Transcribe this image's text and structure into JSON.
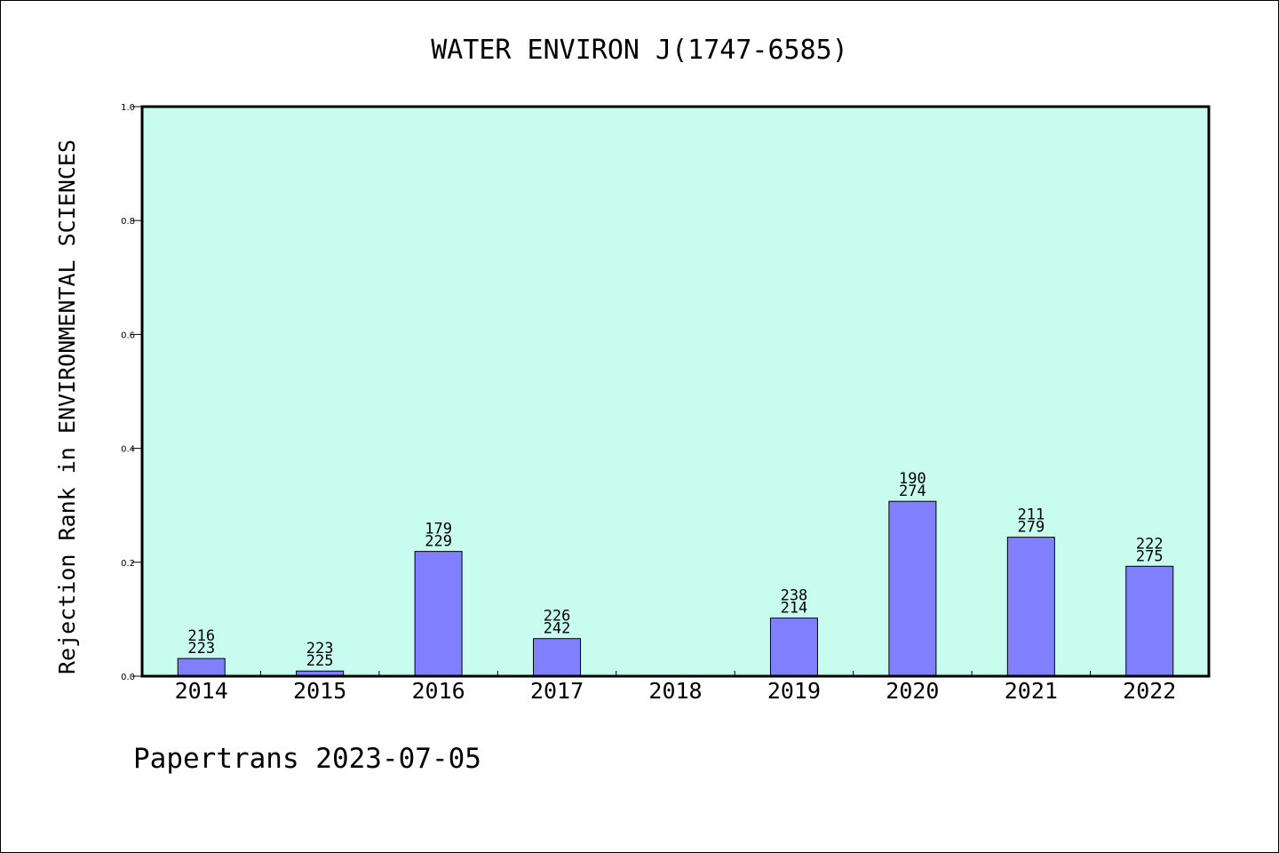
{
  "chart_data": {
    "type": "bar",
    "title": "WATER ENVIRON J(1747-6585)",
    "ylabel": "Rejection Rank in ENVIRONMENTAL SCIENCES",
    "xlabel": "",
    "footer": "Papertrans 2023-07-05",
    "ylim": [
      0.0,
      1.0
    ],
    "yticks": [
      "0.0",
      "0.2",
      "0.4",
      "0.6",
      "0.8",
      "1.0"
    ],
    "ytick_values": [
      0.0,
      0.2,
      0.4,
      0.6,
      0.8,
      1.0
    ],
    "categories": [
      "2014",
      "2015",
      "2016",
      "2017",
      "2018",
      "2019",
      "2020",
      "2021",
      "2022"
    ],
    "values": [
      0.031,
      0.009,
      0.219,
      0.066,
      null,
      0.102,
      0.307,
      0.244,
      0.193
    ],
    "labels_top": [
      "216",
      "223",
      "179",
      "226",
      "",
      "238",
      "190",
      "211",
      "222"
    ],
    "labels_bottom": [
      "223",
      "225",
      "229",
      "242",
      "",
      "214",
      "274",
      "279",
      "275"
    ],
    "colors": {
      "plot_background": "#c8fcee",
      "bar_fill": "#8080ff",
      "bar_stroke": "#000000",
      "axis": "#000000",
      "text": "#000000"
    },
    "grid": false,
    "legend": "none"
  }
}
